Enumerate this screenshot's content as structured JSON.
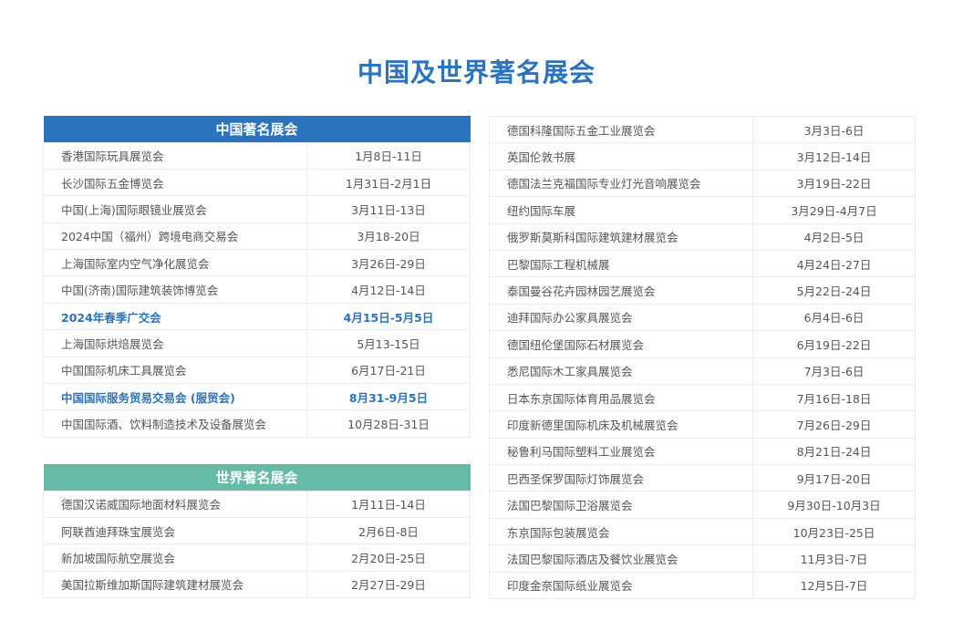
{
  "title": "中国及世界著名展会",
  "colors": {
    "accent": "#2b73bd",
    "world_header": "#66bba8"
  },
  "china": {
    "header": "中国著名展会",
    "rows": [
      {
        "name": "香港国际玩具展览会",
        "date": "1月8日-11日"
      },
      {
        "name": "长沙国际五金博览会",
        "date": "1月31日-2月1日"
      },
      {
        "name": "中国(上海)国际眼镜业展览会",
        "date": "3月11日-13日"
      },
      {
        "name": "2024中国（福州）跨境电商交易会",
        "date": "3月18-20日"
      },
      {
        "name": "上海国际室内空气净化展览会",
        "date": "3月26日-29日"
      },
      {
        "name": "中国(济南)国际建筑装饰博览会",
        "date": "4月12日-14日"
      },
      {
        "name": "2024年春季广交会",
        "date": "4月15日-5月5日",
        "highlight": true
      },
      {
        "name": "上海国际烘焙展览会",
        "date": "5月13-15日"
      },
      {
        "name": "中国国际机床工具展览会",
        "date": "6月17日-21日"
      },
      {
        "name": "中国国际服务贸易交易会 (服贸会)",
        "date": "8月31-9月5日",
        "highlight": true
      },
      {
        "name": "中国国际酒、饮料制造技术及设备展览会",
        "date": "10月28日-31日"
      }
    ]
  },
  "world": {
    "header": "世界著名展会",
    "rows": [
      {
        "name": "德国汉诺威国际地面材料展览会",
        "date": "1月11日-14日"
      },
      {
        "name": "阿联酋迪拜珠宝展览会",
        "date": "2月6日-8日"
      },
      {
        "name": "新加坡国际航空展览会",
        "date": "2月20日-25日"
      },
      {
        "name": "美国拉斯维加斯国际建筑建材展览会",
        "date": "2月27日-29日"
      }
    ]
  },
  "world_continued": {
    "rows": [
      {
        "name": "德国科隆国际五金工业展览会",
        "date": "3月3日-6日"
      },
      {
        "name": "英国伦敦书展",
        "date": "3月12日-14日"
      },
      {
        "name": "德国法兰克福国际专业灯光音响展览会",
        "date": "3月19日-22日"
      },
      {
        "name": "纽约国际车展",
        "date": "3月29日-4月7日"
      },
      {
        "name": "俄罗斯莫斯科国际建筑建材展览会",
        "date": "4月2日-5日"
      },
      {
        "name": "巴黎国际工程机械展",
        "date": "4月24日-27日"
      },
      {
        "name": "泰国曼谷花卉园林园艺展览会",
        "date": "5月22日-24日"
      },
      {
        "name": "迪拜国际办公家具展览会",
        "date": "6月4日-6日"
      },
      {
        "name": "德国纽伦堡国际石材展览会",
        "date": "6月19日-22日"
      },
      {
        "name": "悉尼国际木工家具展览会",
        "date": "7月3日-6日"
      },
      {
        "name": "日本东京国际体育用品展览会",
        "date": "7月16日-18日"
      },
      {
        "name": "印度新德里国际机床及机械展览会",
        "date": "7月26日-29日"
      },
      {
        "name": "秘鲁利马国际塑料工业展览会",
        "date": "8月21日-24日"
      },
      {
        "name": "巴西圣保罗国际灯饰展览会",
        "date": "9月17日-20日"
      },
      {
        "name": "法国巴黎国际卫浴展览会",
        "date": "9月30日-10月3日"
      },
      {
        "name": "东京国际包装展览会",
        "date": "10月23日-25日"
      },
      {
        "name": "法国巴黎国际酒店及餐饮业展览会",
        "date": "11月3日-7日"
      },
      {
        "name": "印度金奈国际纸业展览会",
        "date": "12月5日-7日"
      }
    ]
  }
}
